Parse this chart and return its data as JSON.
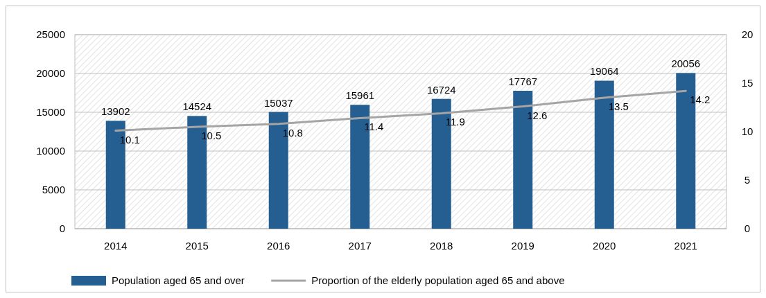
{
  "chart_data": {
    "type": "bar",
    "categories": [
      "2014",
      "2015",
      "2016",
      "2017",
      "2018",
      "2019",
      "2020",
      "2021"
    ],
    "series": [
      {
        "name": "Population aged 65 and over",
        "color": "#255e91",
        "values": [
          13902,
          14524,
          15037,
          15961,
          16724,
          17767,
          19064,
          20056
        ]
      },
      {
        "name": "Proportion of the elderly population aged 65 and above",
        "type": "line",
        "axis": "y2",
        "color": "#a5a5a5",
        "values": [
          10.1,
          10.5,
          10.8,
          11.4,
          11.9,
          12.6,
          13.5,
          14.2
        ]
      }
    ],
    "ylim": [
      0,
      25000
    ],
    "yticks": [
      0,
      5000,
      10000,
      15000,
      20000,
      25000
    ],
    "y2lim": [
      0,
      20
    ],
    "y2ticks": [
      0,
      5,
      10,
      15,
      20
    ],
    "grid": "y",
    "legend": "bottom",
    "data_labels": true,
    "marker": "none",
    "line_style": "solid"
  }
}
